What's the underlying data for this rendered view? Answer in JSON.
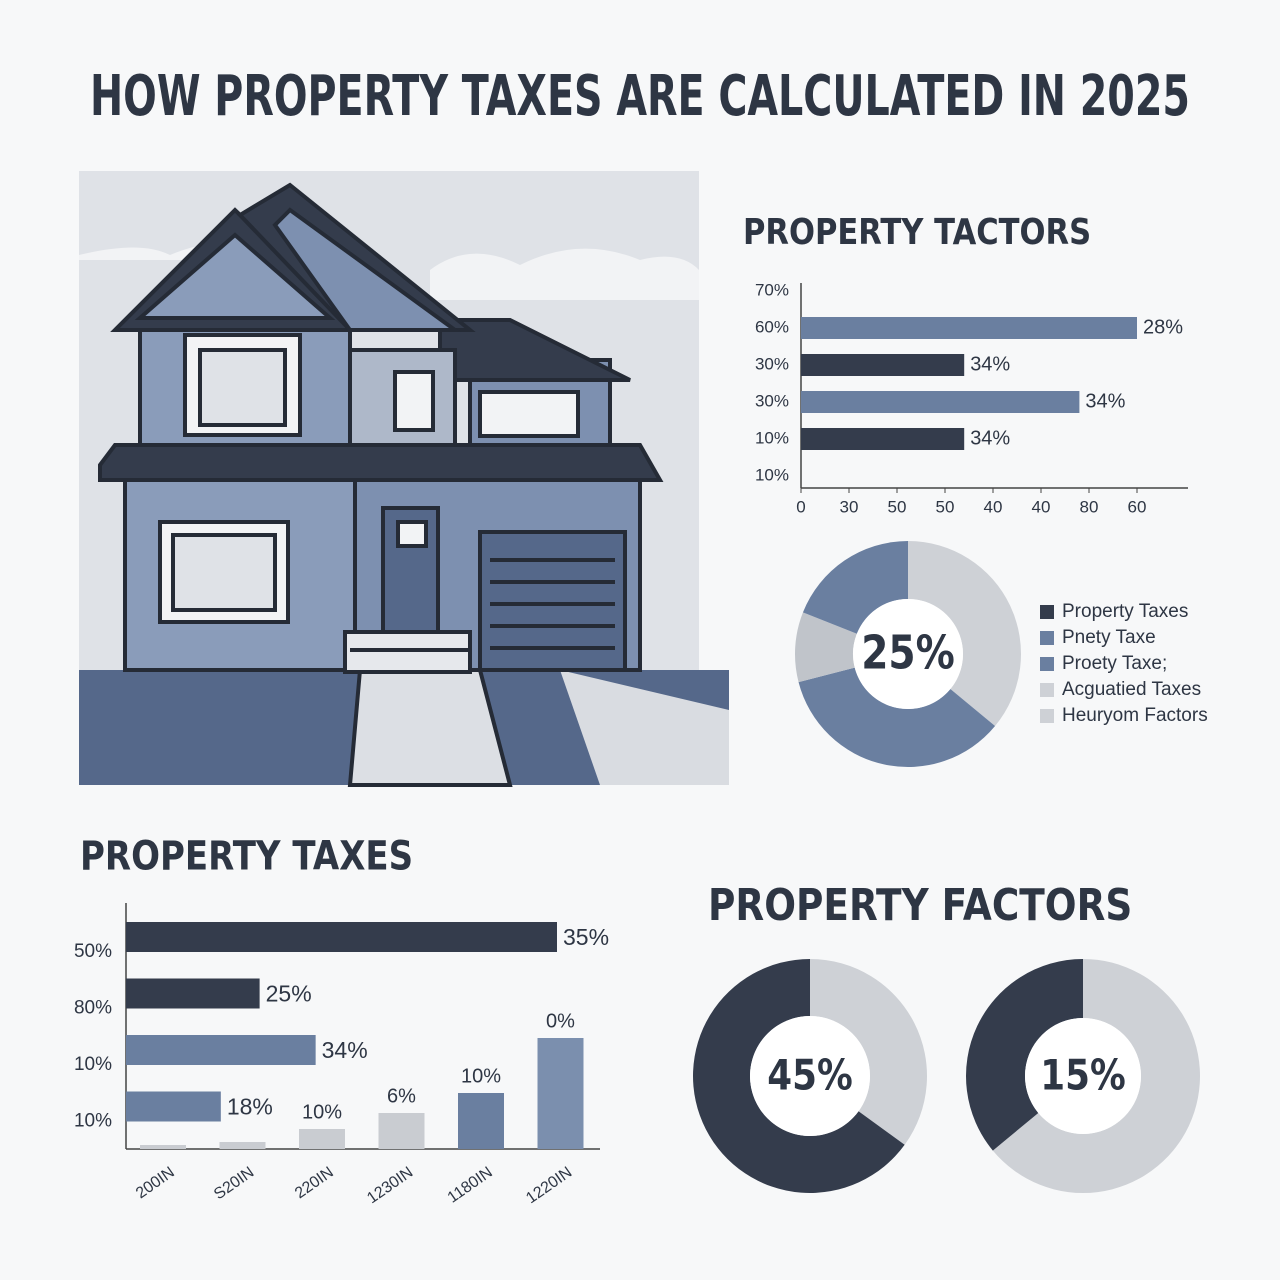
{
  "title": "HOW PROPERTY TAXES ARE CALCULATED IN 2025",
  "chart_data": [
    {
      "type": "hbar",
      "title": "PROPERTY TACTORS",
      "categories": [
        "70%",
        "60%",
        "30%",
        "30%",
        "10%",
        "10%"
      ],
      "values": [
        null,
        70,
        34,
        58,
        34,
        null
      ],
      "colors": [
        null,
        "#6a7fa0",
        "#343c4c",
        "#6a7fa0",
        "#343c4c",
        null
      ],
      "annotations": [
        null,
        "28%",
        "34%",
        "34%",
        "34%",
        null
      ],
      "xlim": [
        0,
        80
      ],
      "xticks": [
        0,
        {
          "value": 10,
          "label": "30"
        },
        {
          "value": 20,
          "label": "50"
        },
        {
          "value": 30,
          "label": "50"
        },
        40,
        {
          "value": 50,
          "label": "40"
        },
        {
          "value": 60,
          "label": "80"
        },
        {
          "value": 70,
          "label": "60"
        }
      ]
    },
    {
      "type": "donut",
      "center_label": "25%",
      "values": [
        36,
        35,
        10,
        19
      ],
      "colors": [
        "#ced1d6",
        "#6a7fa0",
        "#c0c4ca",
        "#6a7fa0"
      ],
      "legend": [
        {
          "name": "Property Taxes",
          "color": "#343c4c"
        },
        {
          "name": "Pnety Taxe",
          "color": "#6a7fa0"
        },
        {
          "name": "Proety Taxe;",
          "color": "#6a7fa0"
        },
        {
          "name": "Acguatied Taxes",
          "color": "#ced1d6"
        },
        {
          "name": "Heuryom Factors",
          "color": "#ced1d6"
        }
      ]
    },
    {
      "type": "hbar-plain",
      "title": "PROPERTY TAXES",
      "categories": [
        "50%",
        "80%",
        "10%",
        "10%"
      ],
      "values": [
        100,
        31,
        44,
        22
      ],
      "colors": [
        "#343c4c",
        "#343c4c",
        "#6a7fa0",
        "#6a7fa0"
      ],
      "annotations": [
        "35%",
        "25%",
        "34%",
        "18%"
      ],
      "xlim": [
        0,
        100
      ]
    },
    {
      "type": "column",
      "categories": [
        "200IN",
        "S20IN",
        "220IN",
        "1230IN",
        "1180IN",
        "1220IN"
      ],
      "values": [
        4,
        7,
        20,
        36,
        56,
        111
      ],
      "colors": [
        "#c9ccd1",
        "#c9ccd1",
        "#c9ccd1",
        "#c9ccd1",
        "#6a7fa0",
        "#7b8fae"
      ],
      "annotations": [
        null,
        null,
        "10%",
        "6%",
        "10%",
        "0%"
      ],
      "ylim": [
        0,
        240
      ]
    },
    {
      "type": "donut",
      "title": "PROPERTY FACTORS",
      "center_label": "45%",
      "values": [
        35,
        65
      ],
      "colors": [
        "#ced1d6",
        "#343c4c"
      ]
    },
    {
      "type": "donut",
      "center_label": "15%",
      "values": [
        64,
        36
      ],
      "colors": [
        "#ced1d6",
        "#343c4c"
      ]
    }
  ]
}
